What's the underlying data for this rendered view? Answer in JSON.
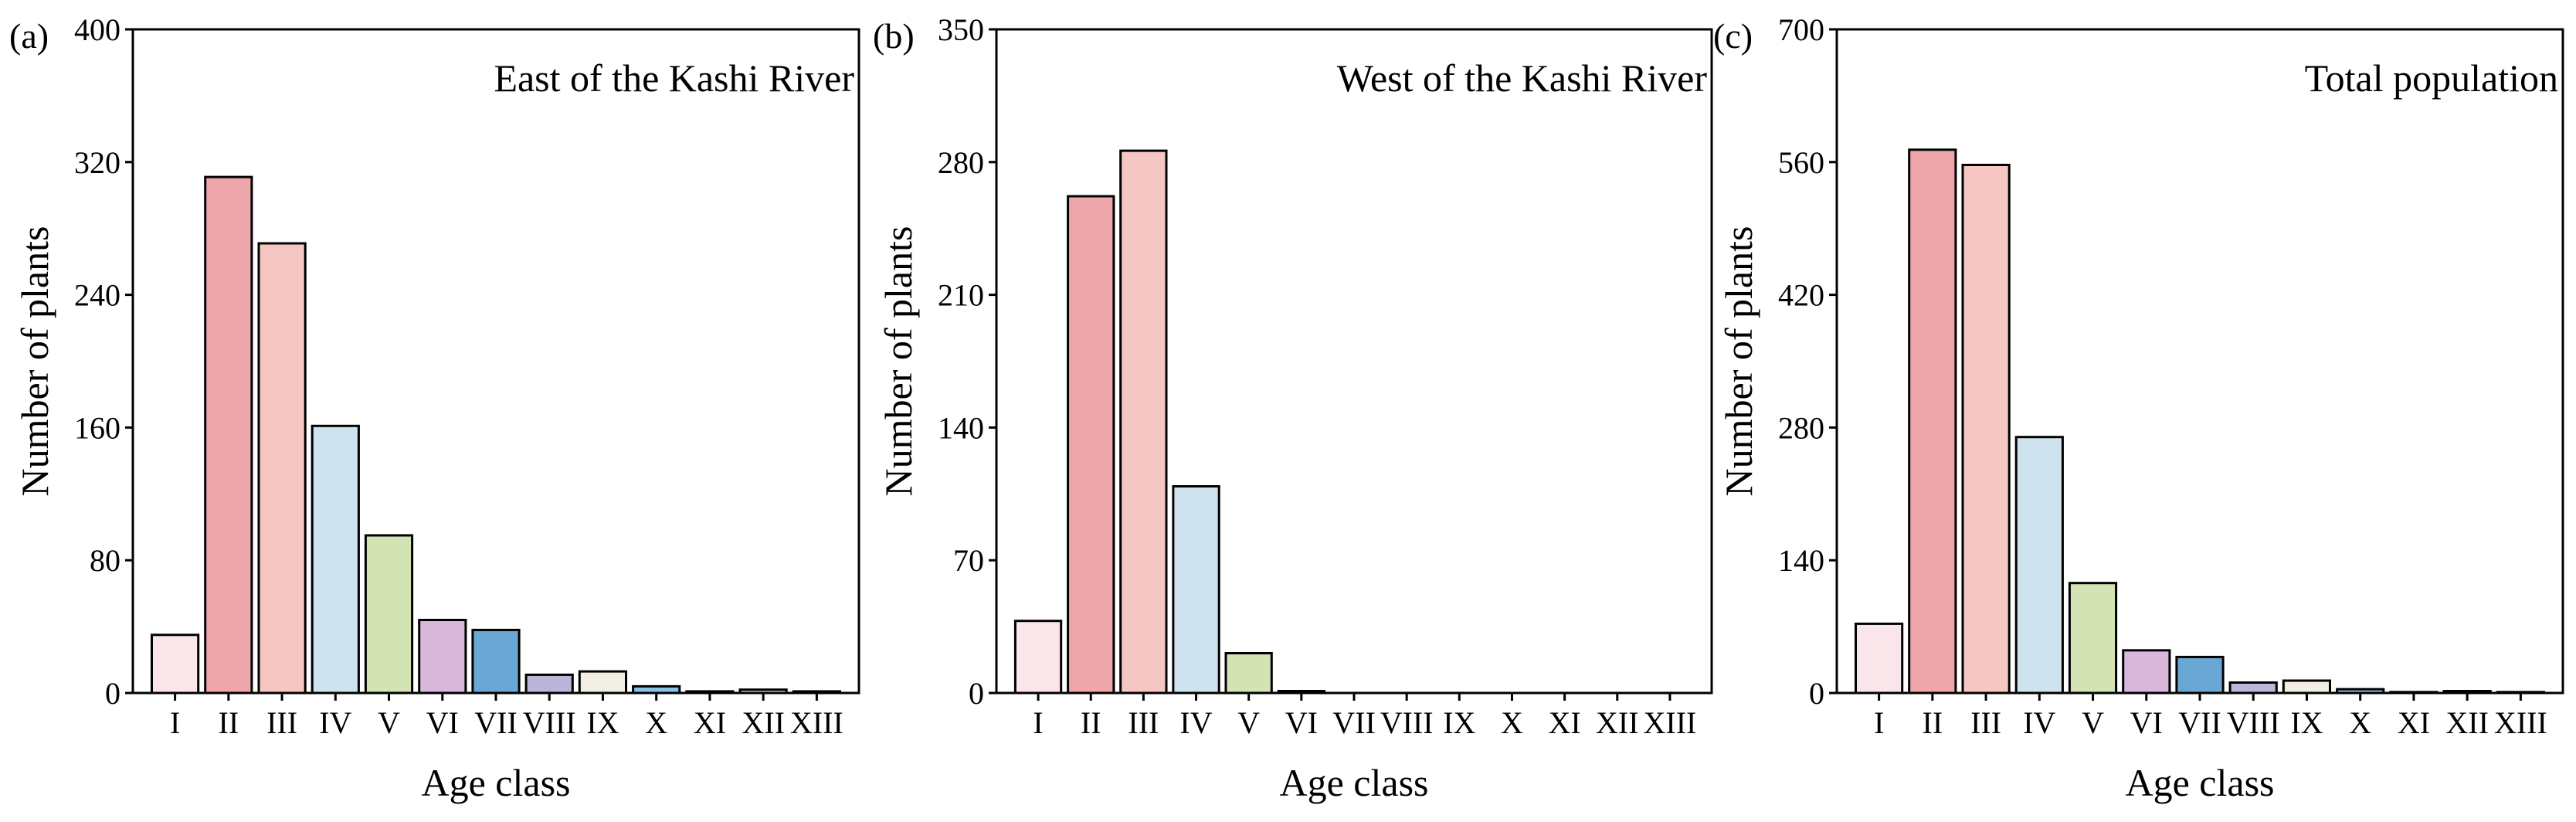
{
  "colors": [
    "#f9e5ea",
    "#eea6aa",
    "#f5c6c2",
    "#cfe3ee",
    "#d3e3b3",
    "#d7b8da",
    "#6aa7d4",
    "#bcb4d9",
    "#f2eee3",
    "#8bc1e6",
    "#e6e6e6",
    "#dddddd",
    "#cccccc"
  ],
  "chart_data": [
    {
      "type": "bar",
      "panel_label": "(a)",
      "title": "East of the Kashi River",
      "xlabel": "Age class",
      "ylabel": "Number of plants",
      "categories": [
        "I",
        "II",
        "III",
        "IV",
        "V",
        "VI",
        "VII",
        "VIII",
        "IX",
        "X",
        "XI",
        "XII",
        "XIII"
      ],
      "values": [
        35,
        311,
        271,
        161,
        95,
        44,
        38,
        11,
        13,
        4,
        1,
        2,
        1
      ],
      "ylim": [
        0,
        400
      ],
      "yticks": [
        0,
        80,
        160,
        240,
        320,
        400
      ]
    },
    {
      "type": "bar",
      "panel_label": "(b)",
      "title": "West of the Kashi River",
      "xlabel": "Age class",
      "ylabel": "Number of plants",
      "categories": [
        "I",
        "II",
        "III",
        "IV",
        "V",
        "VI",
        "VII",
        "VIII",
        "IX",
        "X",
        "XI",
        "XII",
        "XIII"
      ],
      "values": [
        38,
        262,
        286,
        109,
        21,
        1,
        0,
        0,
        0,
        0,
        0,
        0,
        0
      ],
      "ylim": [
        0,
        350
      ],
      "yticks": [
        0,
        70,
        140,
        210,
        280,
        350
      ]
    },
    {
      "type": "bar",
      "panel_label": "(c)",
      "title": "Total population",
      "xlabel": "Age class",
      "ylabel": "Number of plants",
      "categories": [
        "I",
        "II",
        "III",
        "IV",
        "V",
        "VI",
        "VII",
        "VIII",
        "IX",
        "X",
        "XI",
        "XII",
        "XIII"
      ],
      "values": [
        73,
        573,
        557,
        270,
        116,
        45,
        38,
        11,
        13,
        4,
        1,
        2,
        1
      ],
      "ylim": [
        0,
        700
      ],
      "yticks": [
        0,
        140,
        280,
        420,
        560,
        700
      ]
    }
  ]
}
